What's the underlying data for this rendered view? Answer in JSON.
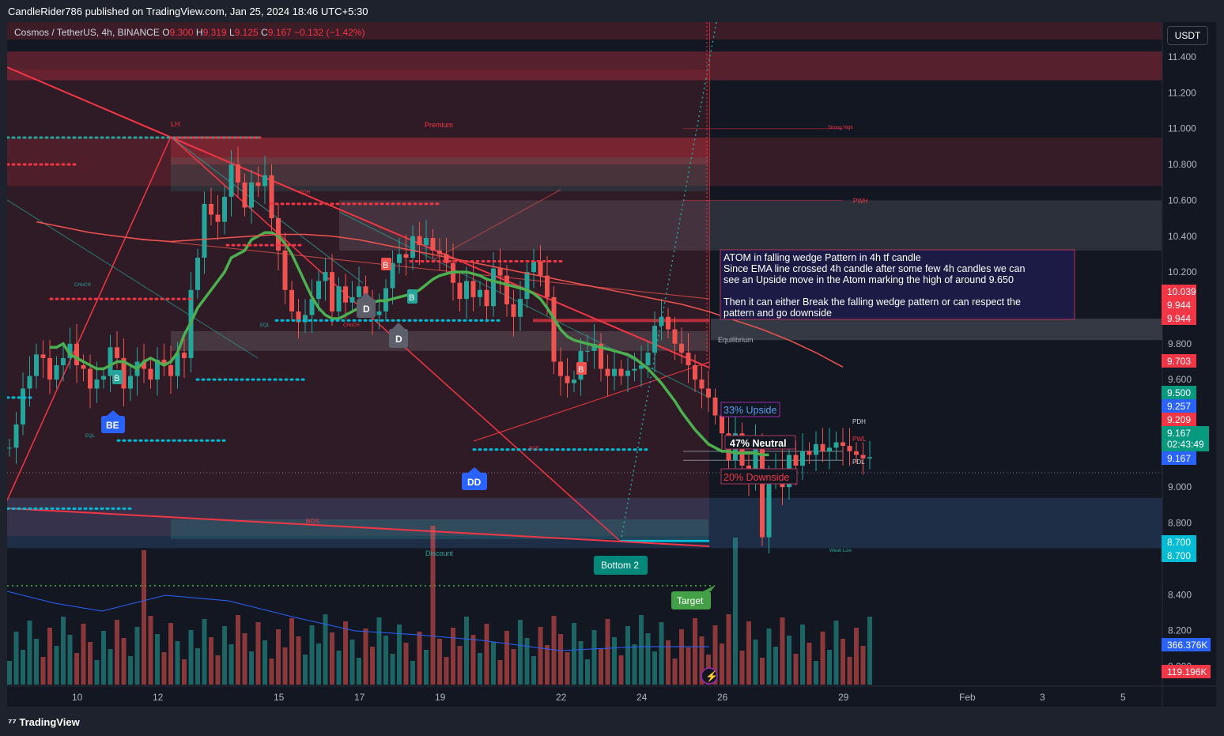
{
  "header": {
    "published_text": "CandleRider786 published on TradingView.com, Jan 25, 2024 18:46 UTC+5:30",
    "symbol_line": "Cosmos / TetherUS, 4h, BINANCE",
    "ohlc_o_label": "O",
    "ohlc_o": "9.300",
    "ohlc_h_label": "H",
    "ohlc_h": "9.319",
    "ohlc_l_label": "L",
    "ohlc_l": "9.125",
    "ohlc_c_label": "C",
    "ohlc_c": "9.167",
    "ohlc_change": "−0.132 (−1.42%)",
    "currency_button": "USDT"
  },
  "footer": {
    "brand": "TradingView"
  },
  "annotation": {
    "line1": "ATOM in falling wedge Pattern in 4h tf candle",
    "line2": "Since EMA line crossed 4h candle after some few 4h candles we can",
    "line3": "see an Upside move in the Atom marking the high of around 9.650",
    "line4": "Then it can either Break the falling wedge pattern or can respect the",
    "line5": "pattern and go downside"
  },
  "scenarios": {
    "up": "33% Upside",
    "neutral": "47% Neutral",
    "down": "20% Downside"
  },
  "markers": {
    "lh": "LH",
    "premium": "Premium",
    "discount": "Discount",
    "equilibrium": "Equilibrium",
    "strong_high": "Strong High",
    "weak_low": "Weak Low",
    "pwh": "PWH",
    "pdh": "PDH",
    "pwl": "PWL",
    "pdl": "PDL",
    "bottom2": "Bottom 2",
    "target": "Target",
    "be": "BE",
    "dd": "DD",
    "d": "D",
    "b": "B",
    "choch": "CHoCH",
    "eql": "EQL",
    "eqh": "EQH",
    "bos": "BOS"
  },
  "price_badges": {
    "b10039": "10.039",
    "b9944a": "9.944",
    "b9944b": "9.944",
    "b9703": "9.703",
    "b9500": "9.500",
    "b9257": "9.257",
    "b9209": "9.209",
    "last_price": "9.167",
    "countdown": "02:43:49",
    "last_price2": "9.167",
    "b8700a": "8.700",
    "b8700b": "8.700",
    "vol1": "366.376K",
    "vol2": "119.196K"
  },
  "colors": {
    "bull": "#26a69a",
    "bear": "#ef5350",
    "zone_red": "#f23645",
    "cyan": "#00bcd4",
    "ema_green": "#4caf50",
    "bg": "#131722"
  },
  "chart_data": {
    "type": "candlestick",
    "title": "Cosmos / TetherUS, 4h, BINANCE",
    "xlabel": "",
    "ylabel": "",
    "ylim": [
      7.95,
      11.55
    ],
    "y_ticks": [
      "11.400",
      "11.200",
      "11.000",
      "10.800",
      "10.600",
      "10.400",
      "10.200",
      "9.800",
      "9.600",
      "9.000",
      "8.800",
      "8.400",
      "8.200",
      "8.000"
    ],
    "x_ticks": [
      "10",
      "12",
      "15",
      "17",
      "19",
      "22",
      "24",
      "26",
      "29",
      "Feb",
      "3",
      "5"
    ],
    "x_start_index": -16,
    "x_end_index": 155,
    "tick_index": {
      "10": 0,
      "12": 12,
      "15": 30,
      "17": 42,
      "19": 54,
      "22": 72,
      "24": 84,
      "26": 96,
      "29": 114,
      "Feb": 132,
      "3": 144,
      "5": 156
    },
    "closes": [
      9.22,
      9.35,
      9.55,
      9.62,
      9.74,
      9.72,
      9.6,
      9.68,
      9.72,
      9.8,
      9.68,
      9.66,
      9.55,
      9.6,
      9.62,
      9.78,
      9.72,
      9.55,
      9.62,
      9.7,
      9.66,
      9.6,
      9.71,
      9.68,
      9.62,
      9.75,
      9.72,
      10.1,
      10.28,
      10.58,
      10.52,
      10.48,
      10.62,
      10.8,
      10.7,
      10.56,
      10.7,
      10.68,
      10.74,
      10.5,
      10.32,
      10.1,
      9.98,
      9.92,
      9.96,
      10.05,
      10.15,
      10.2,
      9.98,
      10.12,
      10.03,
      10.06,
      10.12,
      10.02,
      9.96,
      9.98,
      10.11,
      10.25,
      10.3,
      10.28,
      10.4,
      10.35,
      10.39,
      10.32,
      10.3,
      10.25,
      10.14,
      10.05,
      10.15,
      10.06,
      10.1,
      10.01,
      10.22,
      10.18,
      10.02,
      9.95,
      10.05,
      10.2,
      10.26,
      10.18,
      10.06,
      9.7,
      9.62,
      9.58,
      9.6,
      9.76,
      9.76,
      9.8,
      9.66,
      9.62,
      9.66,
      9.62,
      9.65,
      9.66,
      9.68,
      9.75,
      9.9,
      9.95,
      9.88,
      9.8,
      9.75,
      9.68,
      9.6,
      9.55,
      9.5,
      9.4,
      9.3,
      9.15,
      9.3,
      9.12,
      9.06,
      9.25,
      8.72,
      9.05,
      9.1,
      9.0,
      9.18,
      9.12,
      9.2,
      9.18,
      9.24,
      9.2,
      9.22,
      9.25,
      9.23,
      9.2,
      9.18,
      9.16,
      9.167
    ],
    "ema_fast": [
      9.78,
      9.78,
      9.8,
      9.74,
      9.72,
      9.7,
      9.68,
      9.66,
      9.66,
      9.68,
      9.7,
      9.7,
      9.68,
      9.66,
      9.7,
      9.72,
      9.7,
      9.68,
      9.7,
      9.75,
      9.85,
      9.92,
      10.0,
      10.05,
      10.1,
      10.15,
      10.2,
      10.28,
      10.3,
      10.32,
      10.38,
      10.4,
      10.42,
      10.42,
      10.4,
      10.36,
      10.3,
      10.22,
      10.14,
      10.06,
      10.0,
      9.96,
      9.94,
      9.94,
      9.96,
      9.98,
      10.0,
      10.02,
      10.03,
      10.04,
      10.04,
      10.05,
      10.06,
      10.07,
      10.08,
      10.1,
      10.13,
      10.16,
      10.18,
      10.19,
      10.2,
      10.2,
      10.2,
      10.19,
      10.18,
      10.16,
      10.15,
      10.14,
      10.13,
      10.12,
      10.11,
      10.1,
      10.08,
      10.05,
      10.0,
      9.94,
      9.88,
      9.84,
      9.82,
      9.81,
      9.8,
      9.79,
      9.78,
      9.77,
      9.76,
      9.75,
      9.74,
      9.72,
      9.69,
      9.66,
      9.62,
      9.58,
      9.53,
      9.48,
      9.42,
      9.37,
      9.32,
      9.28,
      9.24,
      9.22,
      9.2,
      9.2,
      9.19,
      9.19,
      9.19,
      9.19,
      9.18,
      9.18
    ],
    "ema_slow": [
      10.48,
      10.45,
      10.42,
      10.4,
      10.38,
      10.37,
      10.38,
      10.39,
      10.4,
      10.41,
      10.41,
      10.4,
      10.38,
      10.35,
      10.32,
      10.29,
      10.26,
      10.23,
      10.2,
      10.17,
      10.14,
      10.11,
      10.08,
      10.05,
      10.02,
      9.98,
      9.93,
      9.88,
      9.82,
      9.75,
      9.67
    ],
    "volume_axis_labels": [
      "366.376K",
      "119.196K"
    ]
  }
}
